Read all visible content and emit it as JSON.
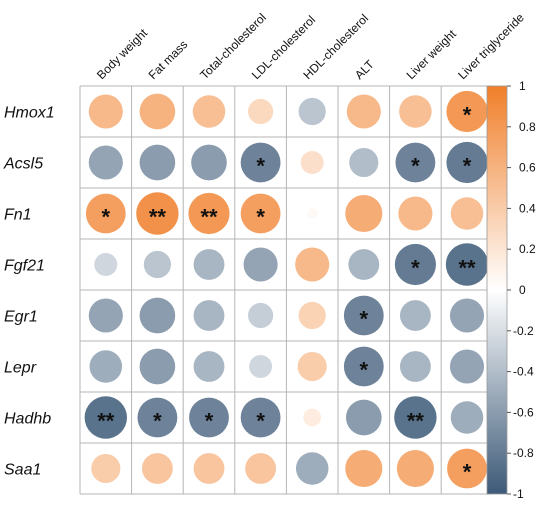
{
  "chart_data": {
    "type": "heatmap",
    "columns": [
      "Body weight",
      "Fat mass",
      "Total-cholesterol",
      "LDL-cholesterol",
      "HDL-cholesterol",
      "ALT",
      "Liver weight",
      "Liver triglyceride"
    ],
    "rows": [
      "Hmox1",
      "Acsl5",
      "Fn1",
      "Fgf21",
      "Egr1",
      "Lepr",
      "Hadhb",
      "Saa1"
    ],
    "values": [
      [
        0.55,
        0.6,
        0.5,
        0.3,
        -0.35,
        0.55,
        0.5,
        0.8
      ],
      [
        -0.55,
        -0.6,
        -0.6,
        -0.75,
        0.25,
        -0.4,
        -0.75,
        -0.8
      ],
      [
        0.75,
        0.85,
        0.8,
        0.75,
        0.05,
        0.65,
        0.55,
        0.5
      ],
      [
        -0.25,
        -0.35,
        -0.45,
        -0.55,
        0.55,
        -0.45,
        -0.8,
        -0.85
      ],
      [
        -0.55,
        -0.6,
        -0.45,
        -0.3,
        0.35,
        -0.75,
        -0.45,
        -0.55
      ],
      [
        -0.5,
        -0.6,
        -0.45,
        -0.25,
        0.4,
        -0.75,
        -0.45,
        -0.55
      ],
      [
        -0.85,
        -0.75,
        -0.75,
        -0.75,
        0.15,
        -0.6,
        -0.85,
        -0.5
      ],
      [
        0.4,
        0.45,
        0.45,
        0.45,
        -0.5,
        0.65,
        0.65,
        0.75
      ]
    ],
    "significance": [
      [
        "",
        "",
        "",
        "",
        "",
        "",
        "",
        "*"
      ],
      [
        "",
        "",
        "",
        "*",
        "",
        "",
        "*",
        "*"
      ],
      [
        "*",
        "**",
        "**",
        "*",
        "",
        "",
        "",
        ""
      ],
      [
        "",
        "",
        "",
        "",
        "",
        "",
        "*",
        "**"
      ],
      [
        "",
        "",
        "",
        "",
        "",
        "*",
        "",
        ""
      ],
      [
        "",
        "",
        "",
        "",
        "",
        "*",
        "",
        ""
      ],
      [
        "**",
        "*",
        "*",
        "*",
        "",
        "",
        "**",
        ""
      ],
      [
        "",
        "",
        "",
        "",
        "",
        "",
        "",
        "*"
      ]
    ],
    "colorbar": {
      "range": [
        -1,
        1
      ],
      "ticks": [
        "1",
        "0.8",
        "0.6",
        "0.4",
        "0.2",
        "0",
        "-0.2",
        "-0.4",
        "-0.6",
        "-0.8",
        "-1"
      ],
      "tick_values": [
        1,
        0.8,
        0.6,
        0.4,
        0.2,
        0,
        -0.2,
        -0.4,
        -0.6,
        -0.8,
        -1
      ],
      "positive_color": "#F07F2A",
      "negative_color": "#3D5A78",
      "neutral_color": "#FFFFFF"
    },
    "grid": true,
    "legend_position": "right"
  }
}
